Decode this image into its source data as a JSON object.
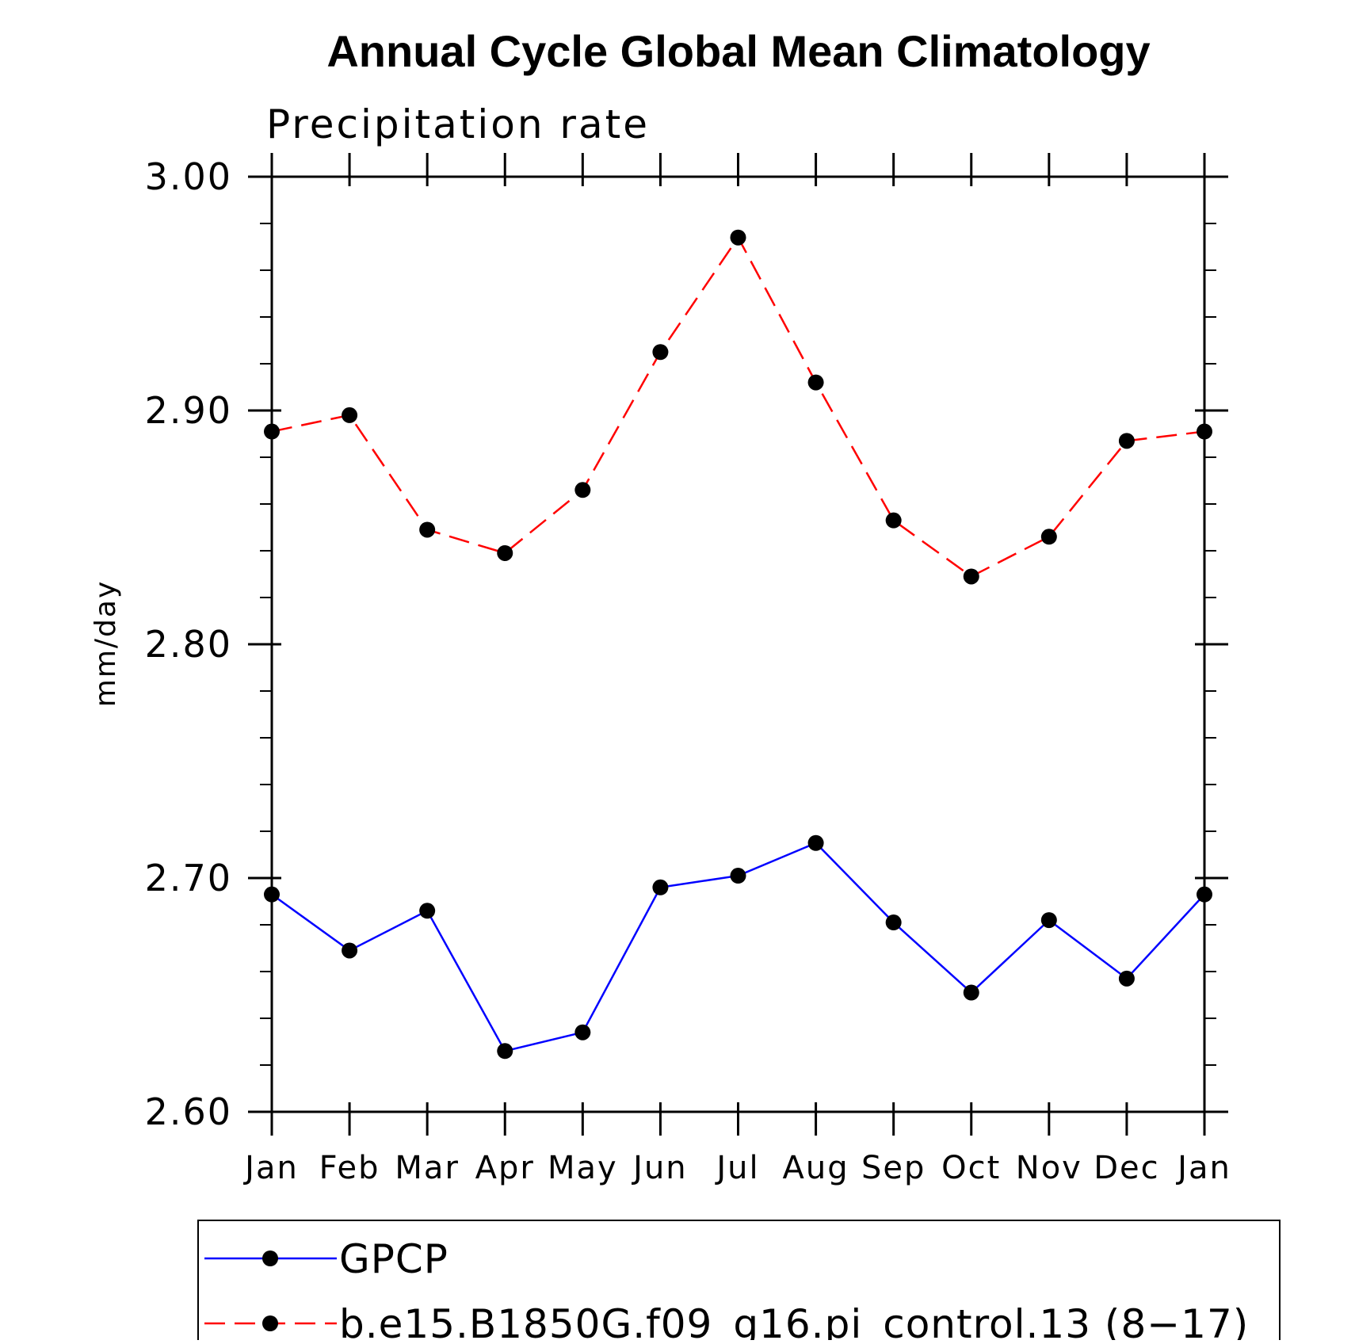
{
  "chart_data": {
    "type": "line",
    "title": "Annual Cycle Global Mean Climatology",
    "subtitle": "Precipitation rate",
    "xlabel": "",
    "ylabel": "mm/day",
    "categories": [
      "Jan",
      "Feb",
      "Mar",
      "Apr",
      "May",
      "Jun",
      "Jul",
      "Aug",
      "Sep",
      "Oct",
      "Nov",
      "Dec",
      "Jan"
    ],
    "ylim": [
      2.6,
      3.0
    ],
    "y_ticks": [
      "2.60",
      "2.70",
      "2.80",
      "2.90",
      "3.00"
    ],
    "y_minor_step": 0.02,
    "grid": false,
    "legend_position": "bottom",
    "series": [
      {
        "name": "GPCP",
        "color": "#0000ff",
        "dash": "solid",
        "marker": "filled-circle",
        "values": [
          2.693,
          2.669,
          2.686,
          2.626,
          2.634,
          2.696,
          2.701,
          2.715,
          2.681,
          2.651,
          2.682,
          2.657,
          2.693
        ]
      },
      {
        "name": "b.e15.B1850G.f09_g16.pi_control.13 (8−17)",
        "color": "#ff0000",
        "dash": "dashed",
        "marker": "filled-circle",
        "values": [
          2.891,
          2.898,
          2.849,
          2.839,
          2.866,
          2.925,
          2.974,
          2.912,
          2.853,
          2.829,
          2.846,
          2.887,
          2.891
        ]
      }
    ]
  }
}
